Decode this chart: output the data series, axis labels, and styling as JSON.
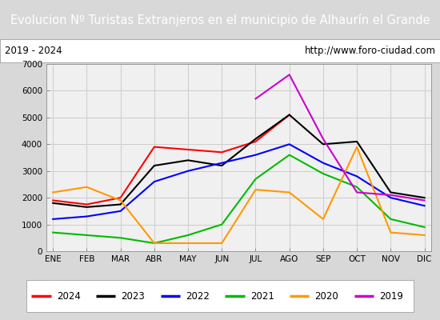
{
  "title": "Evolucion Nº Turistas Extranjeros en el municipio de Alhaurín el Grande",
  "subtitle_left": "2019 - 2024",
  "subtitle_right": "http://www.foro-ciudad.com",
  "title_bg_color": "#4a7fc1",
  "title_text_color": "#ffffff",
  "months": [
    "ENE",
    "FEB",
    "MAR",
    "ABR",
    "MAY",
    "JUN",
    "JUL",
    "AGO",
    "SEP",
    "OCT",
    "NOV",
    "DIC"
  ],
  "ylim": [
    0,
    7000
  ],
  "yticks": [
    0,
    1000,
    2000,
    3000,
    4000,
    5000,
    6000,
    7000
  ],
  "series": {
    "2024": {
      "color": "#ff0000",
      "data": [
        1900,
        1750,
        2000,
        3900,
        3800,
        3700,
        4100,
        5100,
        null,
        null,
        null,
        null
      ]
    },
    "2023": {
      "color": "#000000",
      "data": [
        1800,
        1650,
        1750,
        3200,
        3400,
        3200,
        4200,
        5100,
        4000,
        4100,
        2200,
        2000
      ]
    },
    "2022": {
      "color": "#0000ff",
      "data": [
        1200,
        1300,
        1500,
        2600,
        3000,
        3300,
        3600,
        4000,
        3300,
        2800,
        2000,
        1700
      ]
    },
    "2021": {
      "color": "#00bb00",
      "data": [
        700,
        600,
        500,
        300,
        600,
        1000,
        2700,
        3600,
        2900,
        2400,
        1200,
        900
      ]
    },
    "2020": {
      "color": "#ff9900",
      "data": [
        2200,
        2400,
        1900,
        300,
        300,
        300,
        2300,
        2200,
        1200,
        3900,
        700,
        600
      ]
    },
    "2019": {
      "color": "#cc00cc",
      "data": [
        null,
        null,
        null,
        null,
        null,
        null,
        5700,
        6600,
        4200,
        2200,
        2100,
        1900
      ]
    }
  },
  "legend_order": [
    "2024",
    "2023",
    "2022",
    "2021",
    "2020",
    "2019"
  ],
  "bg_plot_color": "#f0f0f0",
  "grid_color": "#cccccc",
  "outer_bg": "#e8e8e8"
}
